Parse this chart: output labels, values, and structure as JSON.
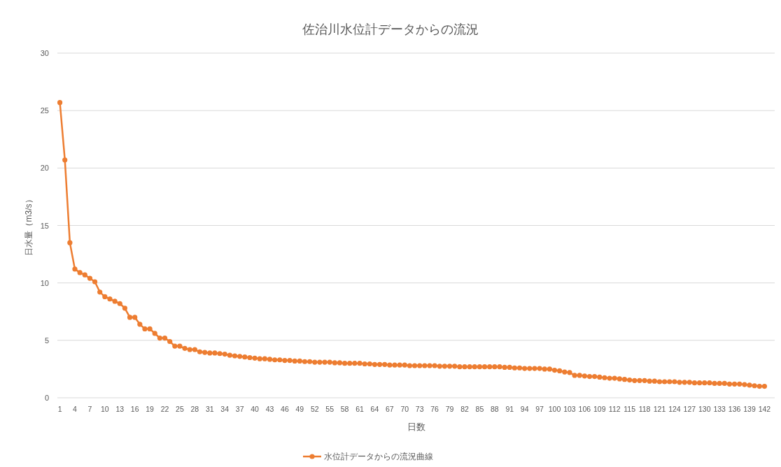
{
  "chart_data": {
    "type": "line",
    "title": "佐治川水位計データからの流況",
    "xlabel": "日数",
    "ylabel": "日水量（m3/s）",
    "categories": [
      "1",
      null,
      null,
      "4",
      null,
      null,
      "7",
      null,
      null,
      "10",
      null,
      null,
      "13",
      null,
      null,
      "16",
      null,
      null,
      "19",
      null,
      null,
      "22",
      null,
      null,
      "25",
      null,
      null,
      "28",
      null,
      null,
      "31",
      null,
      null,
      "34",
      null,
      null,
      "37",
      null,
      null,
      "40",
      null,
      null,
      "43",
      null,
      null,
      "46",
      null,
      null,
      "49",
      null,
      null,
      "52",
      null,
      null,
      "55",
      null,
      null,
      "58",
      null,
      null,
      "61",
      null,
      null,
      "64",
      null,
      null,
      "67",
      null,
      null,
      "70",
      null,
      null,
      "73",
      null,
      null,
      "76",
      null,
      null,
      "79",
      null,
      null,
      "82",
      null,
      null,
      "85",
      null,
      null,
      "88",
      null,
      null,
      "91",
      null,
      null,
      "94",
      null,
      null,
      "97",
      null,
      null,
      "100",
      null,
      null,
      "103",
      null,
      null,
      "106",
      null,
      null,
      "109",
      null,
      null,
      "112",
      null,
      null,
      "115",
      null,
      null,
      "118",
      null,
      null,
      "121",
      null,
      null,
      "124",
      null,
      null,
      "127",
      null,
      null,
      "130",
      null,
      null,
      "133",
      null,
      null,
      "136",
      null,
      null,
      "139",
      null,
      null,
      "142"
    ],
    "series": [
      {
        "name": "水位計データからの流況曲線",
        "color": "#ed7d31",
        "values": [
          25.7,
          20.7,
          13.5,
          11.2,
          10.9,
          10.7,
          10.4,
          10.1,
          9.2,
          8.8,
          8.6,
          8.4,
          8.2,
          7.8,
          7.0,
          7.0,
          6.4,
          6.0,
          6.0,
          5.6,
          5.2,
          5.2,
          4.9,
          4.5,
          4.5,
          4.3,
          4.2,
          4.2,
          4.0,
          3.95,
          3.9,
          3.9,
          3.85,
          3.8,
          3.7,
          3.65,
          3.6,
          3.55,
          3.5,
          3.45,
          3.4,
          3.4,
          3.35,
          3.3,
          3.3,
          3.25,
          3.25,
          3.2,
          3.2,
          3.15,
          3.15,
          3.1,
          3.1,
          3.1,
          3.1,
          3.05,
          3.05,
          3.0,
          3.0,
          3.0,
          3.0,
          2.95,
          2.95,
          2.9,
          2.9,
          2.9,
          2.85,
          2.85,
          2.85,
          2.85,
          2.8,
          2.8,
          2.8,
          2.8,
          2.8,
          2.8,
          2.75,
          2.75,
          2.75,
          2.75,
          2.7,
          2.7,
          2.7,
          2.7,
          2.7,
          2.7,
          2.7,
          2.7,
          2.7,
          2.65,
          2.65,
          2.6,
          2.6,
          2.55,
          2.55,
          2.55,
          2.55,
          2.5,
          2.5,
          2.4,
          2.35,
          2.25,
          2.2,
          1.95,
          1.95,
          1.9,
          1.85,
          1.85,
          1.8,
          1.75,
          1.7,
          1.7,
          1.65,
          1.6,
          1.55,
          1.5,
          1.5,
          1.5,
          1.45,
          1.45,
          1.4,
          1.4,
          1.4,
          1.4,
          1.35,
          1.35,
          1.35,
          1.3,
          1.3,
          1.3,
          1.3,
          1.25,
          1.25,
          1.25,
          1.2,
          1.2,
          1.2,
          1.15,
          1.1,
          1.05,
          1.0,
          1.0
        ]
      }
    ],
    "ylim": [
      0,
      30
    ],
    "yticks": [
      0,
      5,
      10,
      15,
      20,
      25,
      30
    ],
    "grid": "y",
    "legend": "bottom",
    "marker": "circle",
    "line_style": "solid"
  }
}
